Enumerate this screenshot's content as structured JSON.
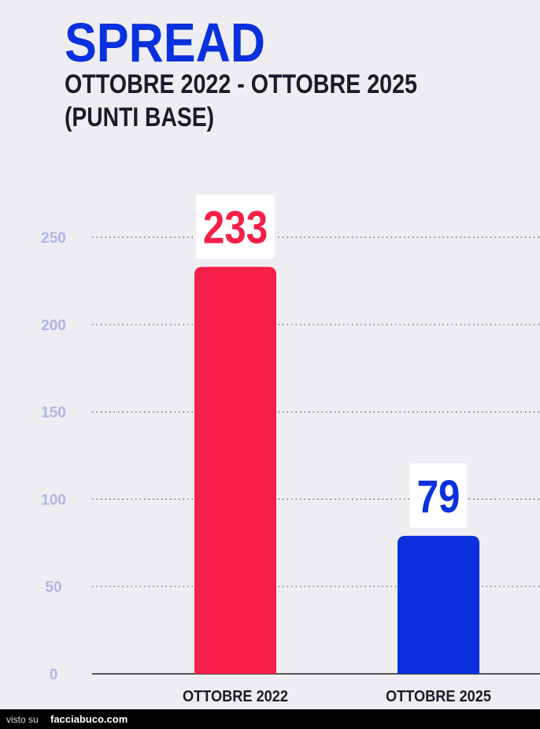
{
  "chart_data": {
    "type": "bar",
    "title": "SPREAD",
    "subtitle": [
      "OTTOBRE 2022 - OTTOBRE 2025",
      "(PUNTI BASE)"
    ],
    "categories": [
      "OTTOBRE 2022",
      "OTTOBRE 2025"
    ],
    "values": [
      233,
      79
    ],
    "colors": [
      "#f61f48",
      "#0a31dd"
    ],
    "ylim": [
      0,
      250
    ],
    "yticks": [
      0,
      50,
      100,
      150,
      200,
      250
    ],
    "grid": true
  },
  "footer": {
    "prefix": "visto su",
    "site": "facciabuco.com"
  }
}
